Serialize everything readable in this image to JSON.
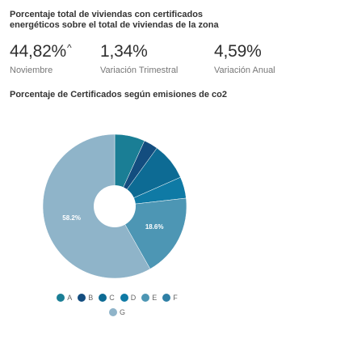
{
  "header": {
    "title": "Porcentaje total de viviendas con certificados energéticos sobre el total de viviendas de la zona"
  },
  "stats": [
    {
      "value": "44,82%",
      "label": "Noviembre",
      "trend_icon": "up-arrow"
    },
    {
      "value": "1,34%",
      "label": "Variación Trimestral"
    },
    {
      "value": "4,59%",
      "label": "Variación Anual"
    }
  ],
  "chart_data": {
    "type": "pie",
    "title": "Porcentaje de Certificados según emisiones de co2",
    "categories": [
      "A",
      "B",
      "C",
      "D",
      "E",
      "F",
      "G"
    ],
    "values": [
      6.8,
      3.2,
      8.4,
      4.8,
      18.6,
      0.0,
      58.2
    ],
    "data_labels": [
      "",
      "",
      "",
      "",
      "18.6%",
      "",
      "58.2%"
    ],
    "colors": [
      "#1a7e95",
      "#134d7f",
      "#0d6b94",
      "#0f7aa5",
      "#4d96b4",
      "#2f7fa5",
      "#8fb4c9"
    ],
    "legend_position": "bottom",
    "donut_hole": true
  }
}
